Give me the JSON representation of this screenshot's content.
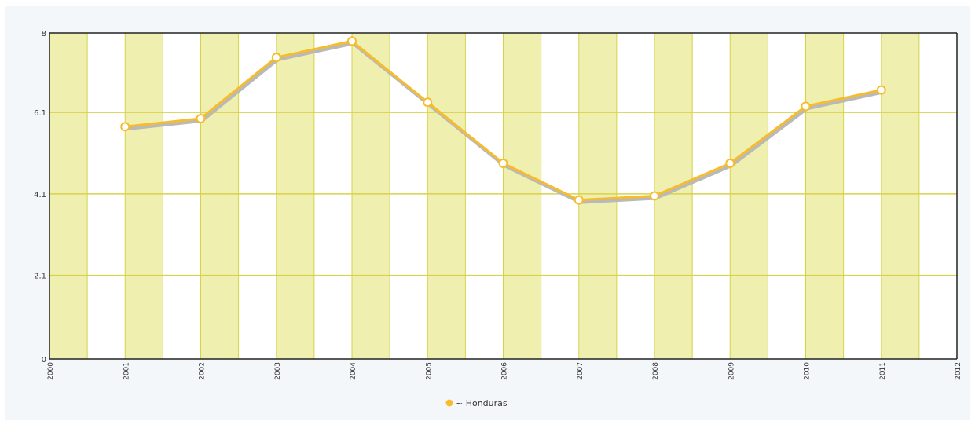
{
  "chart_data": {
    "type": "line",
    "x": [
      2001,
      2002,
      2003,
      2004,
      2005,
      2006,
      2007,
      2008,
      2009,
      2010,
      2011
    ],
    "series": [
      {
        "name": "~ Honduras",
        "values": [
          5.7,
          5.9,
          7.4,
          7.8,
          6.3,
          4.8,
          3.9,
          4.0,
          4.8,
          6.2,
          6.6
        ]
      }
    ],
    "xlim": [
      2000,
      2012
    ],
    "ylim": [
      0,
      8
    ],
    "x_ticks": [
      "2000",
      "2001",
      "2002",
      "2003",
      "2004",
      "2005",
      "2006",
      "2007",
      "2008",
      "2009",
      "2010",
      "2011",
      "2012"
    ],
    "y_ticks": [
      {
        "value": 0,
        "label": "0"
      },
      {
        "value": 2.05,
        "label": "2.1"
      },
      {
        "value": 4.05,
        "label": "4.1"
      },
      {
        "value": 6.05,
        "label": "6.1"
      },
      {
        "value": 8,
        "label": "8"
      }
    ],
    "grid": true,
    "vertical_bands": true,
    "legend_position": "bottom-center",
    "title": "",
    "xlabel": "",
    "ylabel": "",
    "colors": {
      "line": "#f6bc2c",
      "shadow": "#b9b9b9",
      "band": "#efefaf",
      "gridline": "#d8d24a",
      "axis": "#222222",
      "page_background": "#f4f7fa",
      "plot_background": "#ffffff"
    }
  }
}
